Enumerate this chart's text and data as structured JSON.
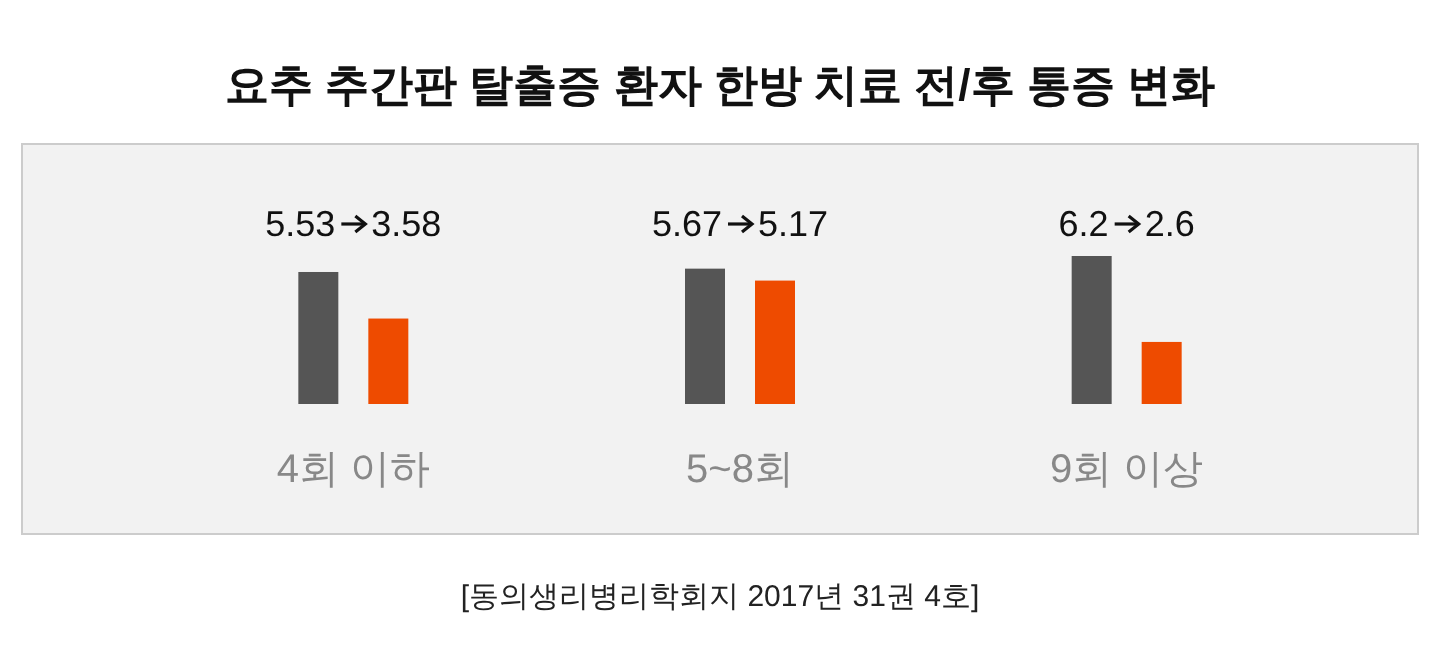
{
  "chart_data": {
    "type": "bar",
    "title": "요추 추간판 탈출증 환자 한방 치료 전/후 통증 변화",
    "categories": [
      "4회 이하",
      "5~8회",
      "9회 이상"
    ],
    "series": [
      {
        "color": "#555555",
        "values": [
          5.53,
          5.67,
          6.2
        ],
        "value_labels": [
          "5.53",
          "5.67",
          "6.2"
        ]
      },
      {
        "color": "#ee4b00",
        "values": [
          3.58,
          5.17,
          2.6
        ],
        "value_labels": [
          "3.58",
          "5.17",
          "2.6"
        ]
      }
    ],
    "annotations": [
      "[동의생리병리학회지 2017년 31권 4호]"
    ]
  }
}
